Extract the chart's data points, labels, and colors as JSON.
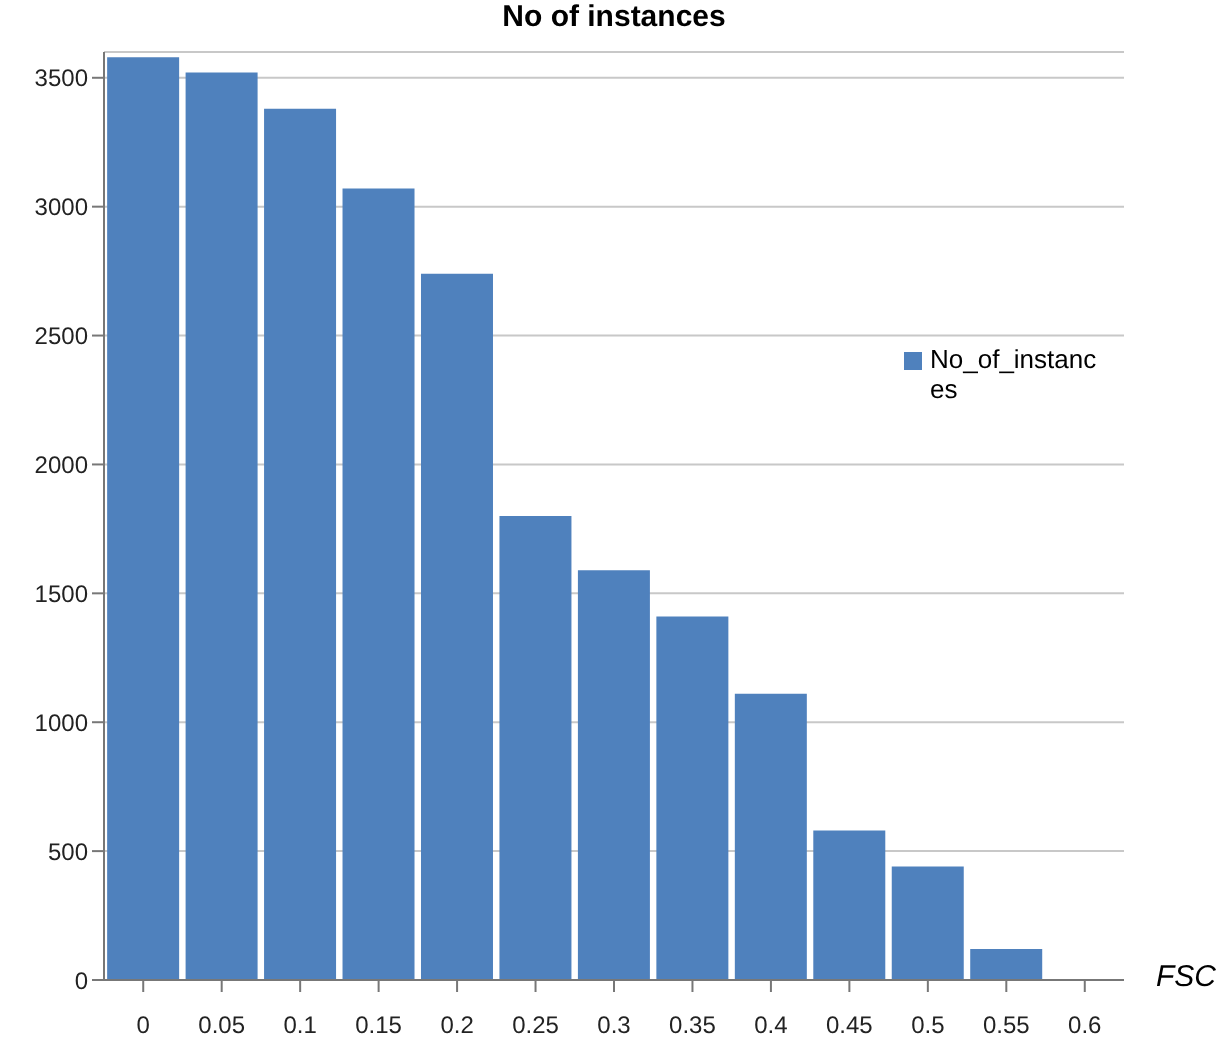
{
  "chart_data": {
    "type": "bar",
    "title": "No of instances",
    "xlabel": "FSC",
    "categories": [
      "0",
      "0.05",
      "0.1",
      "0.15",
      "0.2",
      "0.25",
      "0.3",
      "0.35",
      "0.4",
      "0.45",
      "0.5",
      "0.55",
      "0.6"
    ],
    "series": [
      {
        "name": "No_of_instances",
        "color": "#4f81bd",
        "values": [
          3580,
          3520,
          3380,
          3070,
          2740,
          1800,
          1590,
          1410,
          1110,
          580,
          440,
          120,
          null
        ]
      }
    ],
    "ylim": [
      0,
      3600
    ],
    "yticks": [
      0,
      500,
      1000,
      1500,
      2000,
      2500,
      3000,
      3500
    ],
    "grid": "y",
    "legend": "right"
  }
}
